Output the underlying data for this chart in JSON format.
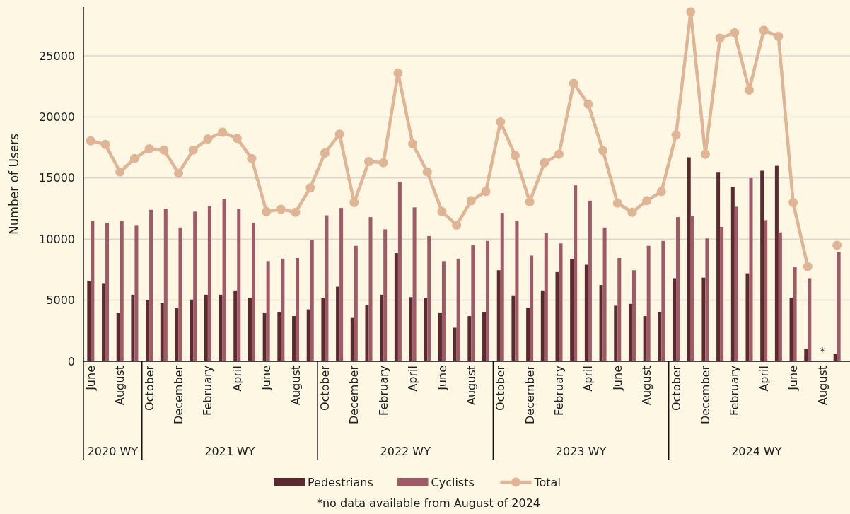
{
  "chart_data": {
    "type": "bar",
    "ylabel": "Number of Users",
    "categories": [
      "June",
      null,
      "August",
      null,
      "October",
      null,
      "December",
      null,
      "February",
      null,
      "April",
      null,
      "June",
      null,
      "August",
      null,
      "October",
      null,
      "December",
      null,
      "February",
      null,
      "April",
      null,
      "June",
      null,
      "August",
      null,
      "October",
      null,
      "December",
      null,
      "February",
      null,
      "April",
      null,
      "June",
      null,
      "August",
      null,
      "October",
      null,
      "December",
      null,
      "February",
      null,
      "April",
      null,
      "June",
      null,
      "August",
      null
    ],
    "series": [
      {
        "name": "Pedestrians",
        "color": "#5a2a2e",
        "values": [
          6600,
          6400,
          3950,
          5450,
          5000,
          4750,
          4400,
          5050,
          5450,
          5450,
          5800,
          5200,
          4000,
          4050,
          3700,
          4250,
          5150,
          6100,
          3550,
          4600,
          5450,
          8850,
          5250,
          5200,
          4000,
          2750,
          3700,
          4050,
          7450,
          5400,
          4400,
          5800,
          7300,
          8350,
          7900,
          6250,
          4550,
          4700,
          3700,
          4050,
          6800,
          16700,
          6850,
          15500,
          14300,
          7200,
          15600,
          16000,
          5200,
          1000,
          null,
          600
        ]
      },
      {
        "name": "Cyclists",
        "color": "#9e5a65",
        "values": [
          11500,
          11350,
          11500,
          11150,
          12400,
          12500,
          10950,
          12250,
          12700,
          13300,
          12450,
          11350,
          8200,
          8400,
          8450,
          9900,
          11950,
          12550,
          9450,
          11800,
          10800,
          14700,
          12600,
          10250,
          8200,
          8400,
          9500,
          9850,
          12150,
          11500,
          8650,
          10500,
          9650,
          14400,
          13150,
          10950,
          8450,
          7450,
          9450,
          9850,
          11800,
          11900,
          10050,
          11000,
          12650,
          15000,
          11550,
          10550,
          7750,
          6800,
          null,
          8950
        ]
      },
      {
        "name": "Total",
        "type": "line",
        "color": "#dfb595",
        "marker": "circle",
        "values": [
          18050,
          17750,
          15500,
          16600,
          17400,
          17300,
          15400,
          17300,
          18200,
          18750,
          18250,
          16600,
          12250,
          12450,
          12200,
          14200,
          17050,
          18600,
          13000,
          16350,
          16250,
          23600,
          17800,
          15500,
          12250,
          11150,
          13150,
          13900,
          19600,
          16850,
          13050,
          16250,
          16950,
          22750,
          21050,
          17250,
          12950,
          12200,
          13150,
          13900,
          18550,
          28600,
          16950,
          26450,
          26900,
          22200,
          27100,
          26600,
          13000,
          7750,
          null,
          9500
        ]
      }
    ],
    "ylim": [
      0,
      29000
    ],
    "yticks": [
      0,
      5000,
      10000,
      15000,
      20000,
      25000
    ],
    "grid": "y",
    "legend": "bottom",
    "annotations": [
      "2020 WY",
      "2021 WY",
      "2022 WY",
      "2023 WY",
      "2024 WY",
      "*",
      "*no data available from August of 2024"
    ]
  }
}
